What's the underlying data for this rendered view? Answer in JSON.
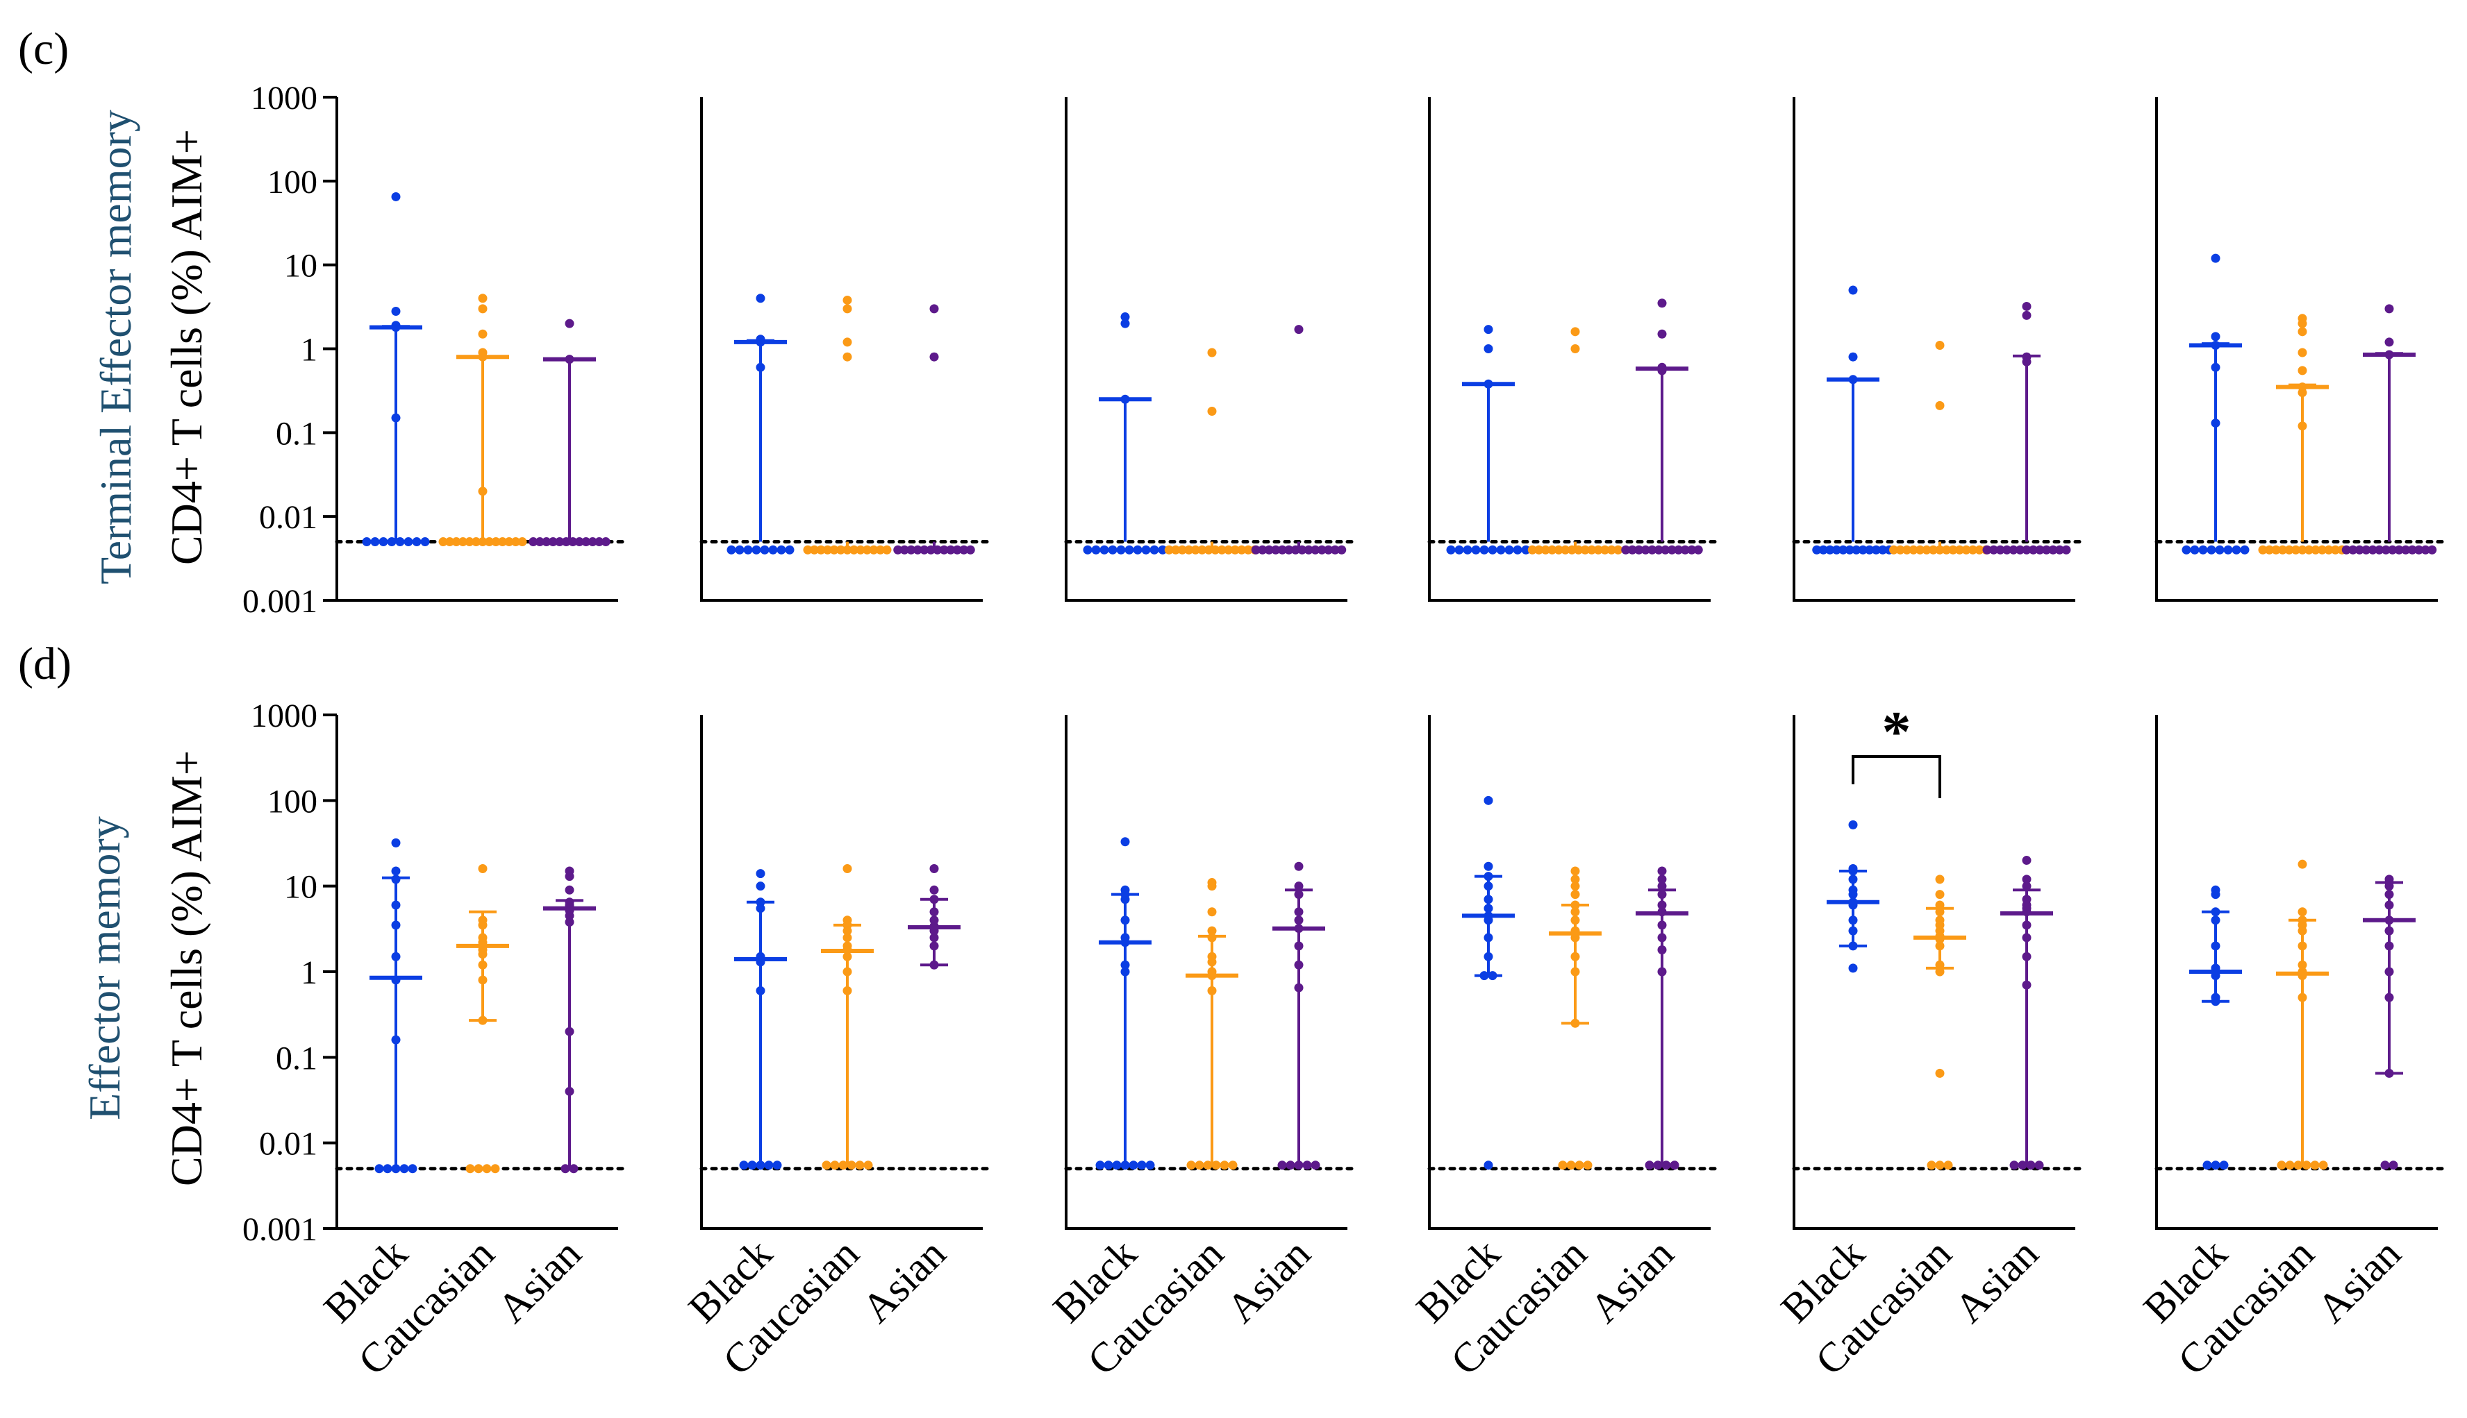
{
  "figure": {
    "groups": [
      "Black",
      "Caucasian",
      "Asian"
    ],
    "colors": {
      "Black": "#0b3ee3",
      "Caucasian": "#fb9a16",
      "Asian": "#5d1a8b",
      "axis": "#000000",
      "subtitle": "#1f5070"
    },
    "significance_marker": "*"
  },
  "chart_data": [
    {
      "type": "scatter",
      "id": "c",
      "panel_label": "(c)",
      "subtitle": "Terminal Effector memory",
      "ylabel": "CD4+ T cells (%) AIM+",
      "yscale": "log",
      "ylim": [
        0.001,
        1000
      ],
      "yticks": [
        "1000",
        "100",
        "10",
        "1",
        "0.1",
        "0.01",
        "0.001"
      ],
      "threshold": 0.005,
      "subpanels": [
        {
          "Black": {
            "points": [
              0.005,
              0.005,
              0.005,
              0.005,
              0.005,
              0.005,
              0.005,
              0.005,
              0.15,
              1.8,
              1.9,
              2.8,
              65
            ],
            "median": 1.8,
            "upper": 1.85
          },
          "Caucasian": {
            "points": [
              0.005,
              0.005,
              0.005,
              0.005,
              0.005,
              0.005,
              0.005,
              0.005,
              0.005,
              0.005,
              0.005,
              0.005,
              0.005,
              0.02,
              0.8,
              0.9,
              1.5,
              3.0,
              4.0
            ],
            "median": 0.8,
            "upper": 0.8
          },
          "Asian": {
            "points": [
              0.005,
              0.005,
              0.005,
              0.005,
              0.005,
              0.005,
              0.005,
              0.005,
              0.005,
              0.005,
              0.005,
              0.005,
              0.75,
              2.0
            ],
            "median": 0.75,
            "upper": 0.75
          }
        },
        {
          "Black": {
            "points": [
              0.004,
              0.004,
              0.004,
              0.004,
              0.004,
              0.004,
              0.004,
              0.004,
              0.6,
              1.2,
              1.3,
              4.0
            ],
            "median": 1.2,
            "upper": 1.25
          },
          "Caucasian": {
            "points": [
              0.004,
              0.004,
              0.004,
              0.004,
              0.004,
              0.004,
              0.004,
              0.004,
              0.004,
              0.004,
              0.004,
              0.004,
              0.004,
              0.8,
              1.2,
              3.0,
              3.8
            ],
            "median": 0.004,
            "upper": 0.004
          },
          "Asian": {
            "points": [
              0.004,
              0.004,
              0.004,
              0.004,
              0.004,
              0.004,
              0.004,
              0.004,
              0.004,
              0.004,
              0.004,
              0.004,
              0.8,
              3.0
            ],
            "median": 0.004,
            "upper": 0.004
          }
        },
        {
          "Black": {
            "points": [
              0.004,
              0.004,
              0.004,
              0.004,
              0.004,
              0.004,
              0.004,
              0.004,
              0.004,
              0.004,
              0.25,
              2.0,
              2.4
            ],
            "median": 0.25,
            "upper": 0.25
          },
          "Caucasian": {
            "points": [
              0.004,
              0.004,
              0.004,
              0.004,
              0.004,
              0.004,
              0.004,
              0.004,
              0.004,
              0.004,
              0.004,
              0.004,
              0.004,
              0.004,
              0.18,
              0.9
            ],
            "median": 0.004,
            "upper": 0.004
          },
          "Asian": {
            "points": [
              0.004,
              0.004,
              0.004,
              0.004,
              0.004,
              0.004,
              0.004,
              0.004,
              0.004,
              0.004,
              0.004,
              0.004,
              0.004,
              0.004,
              1.7
            ],
            "median": 0.004,
            "upper": 0.004
          }
        },
        {
          "Black": {
            "points": [
              0.004,
              0.004,
              0.004,
              0.004,
              0.004,
              0.004,
              0.004,
              0.004,
              0.004,
              0.004,
              0.38,
              1.0,
              1.7
            ],
            "median": 0.38,
            "upper": 0.38
          },
          "Caucasian": {
            "points": [
              0.004,
              0.004,
              0.004,
              0.004,
              0.004,
              0.004,
              0.004,
              0.004,
              0.004,
              0.004,
              0.004,
              0.004,
              0.004,
              0.004,
              1.0,
              1.6
            ],
            "median": 0.004,
            "upper": 0.004
          },
          "Asian": {
            "points": [
              0.004,
              0.004,
              0.004,
              0.004,
              0.004,
              0.004,
              0.004,
              0.004,
              0.004,
              0.004,
              0.004,
              0.004,
              0.55,
              0.6,
              1.5,
              3.5
            ],
            "median": 0.58,
            "upper": 0.58
          }
        },
        {
          "Black": {
            "points": [
              0.004,
              0.004,
              0.004,
              0.004,
              0.004,
              0.004,
              0.004,
              0.004,
              0.004,
              0.004,
              0.004,
              0.004,
              0.43,
              0.8,
              5.0
            ],
            "median": 0.43,
            "upper": 0.43
          },
          "Caucasian": {
            "points": [
              0.004,
              0.004,
              0.004,
              0.004,
              0.004,
              0.004,
              0.004,
              0.004,
              0.004,
              0.004,
              0.004,
              0.004,
              0.004,
              0.004,
              0.004,
              0.21,
              1.1
            ],
            "median": 0.004,
            "upper": 0.004
          },
          "Asian": {
            "points": [
              0.004,
              0.004,
              0.004,
              0.004,
              0.004,
              0.004,
              0.004,
              0.004,
              0.004,
              0.004,
              0.004,
              0.004,
              0.004,
              0.7,
              0.8,
              2.5,
              3.2
            ],
            "median": 0.004,
            "upper": 0.82
          }
        },
        {
          "Black": {
            "points": [
              0.004,
              0.004,
              0.004,
              0.004,
              0.004,
              0.004,
              0.004,
              0.004,
              0.13,
              0.6,
              1.1,
              1.4,
              12
            ],
            "median": 1.1,
            "upper": 1.15
          },
          "Caucasian": {
            "points": [
              0.004,
              0.004,
              0.004,
              0.004,
              0.004,
              0.004,
              0.004,
              0.004,
              0.004,
              0.004,
              0.004,
              0.004,
              0.004,
              0.12,
              0.3,
              0.35,
              0.55,
              0.9,
              1.6,
              2.0,
              2.3
            ],
            "median": 0.35,
            "upper": 0.37
          },
          "Asian": {
            "points": [
              0.004,
              0.004,
              0.004,
              0.004,
              0.004,
              0.004,
              0.004,
              0.004,
              0.004,
              0.004,
              0.004,
              0.004,
              0.004,
              0.004,
              0.85,
              1.2,
              3.0
            ],
            "median": 0.85,
            "upper": 0.88
          }
        }
      ]
    },
    {
      "type": "scatter",
      "id": "d",
      "panel_label": "(d)",
      "subtitle": "Effector memory",
      "ylabel": "CD4+ T cells (%) AIM+",
      "yscale": "log",
      "ylim": [
        0.001,
        1000
      ],
      "yticks": [
        "1000",
        "100",
        "10",
        "1",
        "0.1",
        "0.01",
        "0.001"
      ],
      "threshold": 0.005,
      "xticklabels": [
        "Black",
        "Caucasian",
        "Asian"
      ],
      "significance": {
        "subpanel": 5,
        "from": "Black",
        "to": "Caucasian",
        "label": "*"
      },
      "subpanels": [
        {
          "Black": {
            "points": [
              0.005,
              0.005,
              0.005,
              0.005,
              0.005,
              0.16,
              0.8,
              1.5,
              3.5,
              6,
              12,
              15,
              32
            ],
            "median": 0.85,
            "lower": 0.005,
            "upper": 12.5
          },
          "Caucasian": {
            "points": [
              0.005,
              0.005,
              0.005,
              0.005,
              0.27,
              0.8,
              1.2,
              1.6,
              1.8,
              2.0,
              2.2,
              2.5,
              3.5,
              4.0,
              16
            ],
            "median": 2.0,
            "lower": 0.27,
            "upper": 5.0
          },
          "Asian": {
            "points": [
              0.005,
              0.005,
              0.04,
              0.2,
              3.8,
              4.5,
              5.2,
              5.8,
              6.0,
              6.5,
              9,
              13,
              15
            ],
            "median": 5.5,
            "lower": 0.005,
            "upper": 6.8
          }
        },
        {
          "Black": {
            "points": [
              0.0055,
              0.0055,
              0.0055,
              0.0055,
              0.0055,
              0.6,
              1.3,
              1.5,
              5.5,
              6.5,
              10,
              14
            ],
            "median": 1.4,
            "lower": 0.0055,
            "upper": 6.5
          },
          "Caucasian": {
            "points": [
              0.0055,
              0.0055,
              0.0055,
              0.0055,
              0.0055,
              0.0055,
              0.6,
              1.0,
              1.5,
              1.8,
              2.0,
              2.5,
              3.0,
              3.5,
              4.0,
              16
            ],
            "median": 1.75,
            "lower": 0.0055,
            "upper": 3.5
          },
          "Asian": {
            "points": [
              1.2,
              2.0,
              2.5,
              3.0,
              3.4,
              4.0,
              5.0,
              7.0,
              9.0,
              16
            ],
            "median": 3.3,
            "lower": 1.2,
            "upper": 7.0
          }
        },
        {
          "Black": {
            "points": [
              0.0055,
              0.0055,
              0.0055,
              0.0055,
              0.0055,
              0.0055,
              0.0055,
              1.0,
              1.2,
              2.2,
              2.5,
              4.0,
              7.0,
              8.0,
              9.0,
              33
            ],
            "median": 2.2,
            "lower": 0.0055,
            "upper": 8.0
          },
          "Caucasian": {
            "points": [
              0.0055,
              0.0055,
              0.0055,
              0.0055,
              0.0055,
              0.0055,
              0.6,
              0.9,
              1.0,
              1.3,
              1.5,
              2.5,
              3.0,
              5.0,
              10,
              11
            ],
            "median": 0.9,
            "lower": 0.0055,
            "upper": 2.6
          },
          "Asian": {
            "points": [
              0.0055,
              0.0055,
              0.0055,
              0.0055,
              0.0055,
              0.65,
              1.2,
              2.0,
              3.2,
              4.0,
              5.0,
              8.0,
              10,
              17
            ],
            "median": 3.2,
            "lower": 0.0055,
            "upper": 9.0
          }
        },
        {
          "Black": {
            "points": [
              0.0055,
              0.9,
              0.9,
              1.5,
              2.5,
              4.0,
              4.5,
              5.5,
              7.0,
              10,
              13,
              17,
              100
            ],
            "median": 4.5,
            "lower": 0.9,
            "upper": 13
          },
          "Caucasian": {
            "points": [
              0.0055,
              0.0055,
              0.0055,
              0.0055,
              0.25,
              1.0,
              1.5,
              2.5,
              3.0,
              4.0,
              5.0,
              6.0,
              8.0,
              10,
              12,
              15
            ],
            "median": 2.8,
            "lower": 0.25,
            "upper": 6.0
          },
          "Asian": {
            "points": [
              0.0055,
              0.0055,
              0.0055,
              0.0055,
              1.0,
              1.8,
              2.5,
              3.5,
              5.0,
              6.0,
              8.0,
              10,
              12,
              15
            ],
            "median": 4.8,
            "lower": 0.0055,
            "upper": 9.0
          }
        },
        {
          "Black": {
            "points": [
              1.1,
              2.0,
              3.0,
              4.0,
              6.0,
              6.5,
              8.0,
              9.0,
              12,
              15,
              16,
              52
            ],
            "median": 6.5,
            "lower": 2.0,
            "upper": 15
          },
          "Caucasian": {
            "points": [
              0.0055,
              0.0055,
              0.0055,
              0.065,
              1.0,
              1.2,
              2.0,
              2.4,
              2.6,
              3.0,
              3.5,
              4.0,
              5.0,
              6.0,
              8.0,
              12
            ],
            "median": 2.5,
            "lower": 1.1,
            "upper": 5.5
          },
          "Asian": {
            "points": [
              0.0055,
              0.0055,
              0.0055,
              0.0055,
              0.7,
              1.5,
              2.5,
              3.5,
              5.0,
              5.5,
              6.0,
              7.0,
              10,
              12,
              20
            ],
            "median": 4.8,
            "lower": 0.0055,
            "upper": 9.0
          }
        },
        {
          "Black": {
            "points": [
              0.0055,
              0.0055,
              0.0055,
              0.45,
              0.5,
              0.9,
              1.0,
              1.1,
              2.0,
              4.0,
              5.0,
              8.0,
              9.0
            ],
            "median": 1.0,
            "lower": 0.45,
            "upper": 5.0
          },
          "Caucasian": {
            "points": [
              0.0055,
              0.0055,
              0.0055,
              0.0055,
              0.0055,
              0.0055,
              0.5,
              0.9,
              1.0,
              1.2,
              2.0,
              3.0,
              3.5,
              4.0,
              5.0,
              18
            ],
            "median": 0.95,
            "lower": 0.0055,
            "upper": 4.0
          },
          "Asian": {
            "points": [
              0.0055,
              0.0055,
              0.065,
              0.5,
              1.0,
              2.0,
              3.0,
              4.0,
              6.0,
              8.0,
              10,
              11,
              12
            ],
            "median": 4.0,
            "lower": 0.065,
            "upper": 11
          }
        }
      ]
    }
  ]
}
